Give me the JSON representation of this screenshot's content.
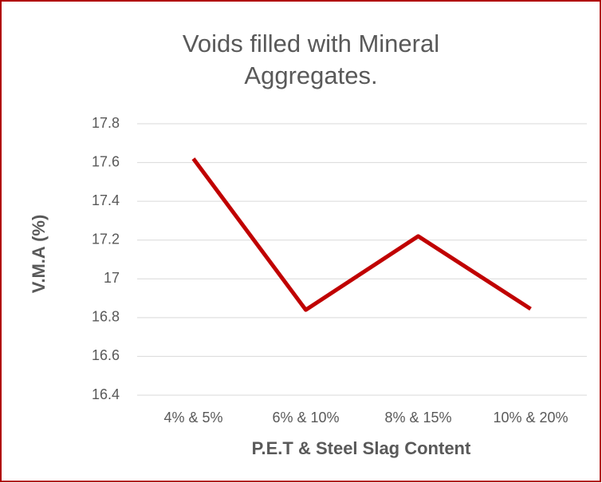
{
  "chart_data": {
    "type": "line",
    "title": [
      "Voids filled with Mineral",
      "Aggregates."
    ],
    "x_label": "P.E.T & Steel Slag Content",
    "y_label": "V.M.A (%)",
    "categories": [
      "4% & 5%",
      "6% & 10%",
      "8% & 15%",
      "10% & 20%"
    ],
    "series": [
      {
        "color": "#c00000",
        "values": [
          17.62,
          16.84,
          17.22,
          16.845
        ]
      }
    ],
    "ylim": [
      16.4,
      17.8
    ],
    "yticks": [
      16.4,
      16.6,
      16.8,
      17,
      17.2,
      17.4,
      17.6,
      17.8
    ],
    "grid": true
  }
}
